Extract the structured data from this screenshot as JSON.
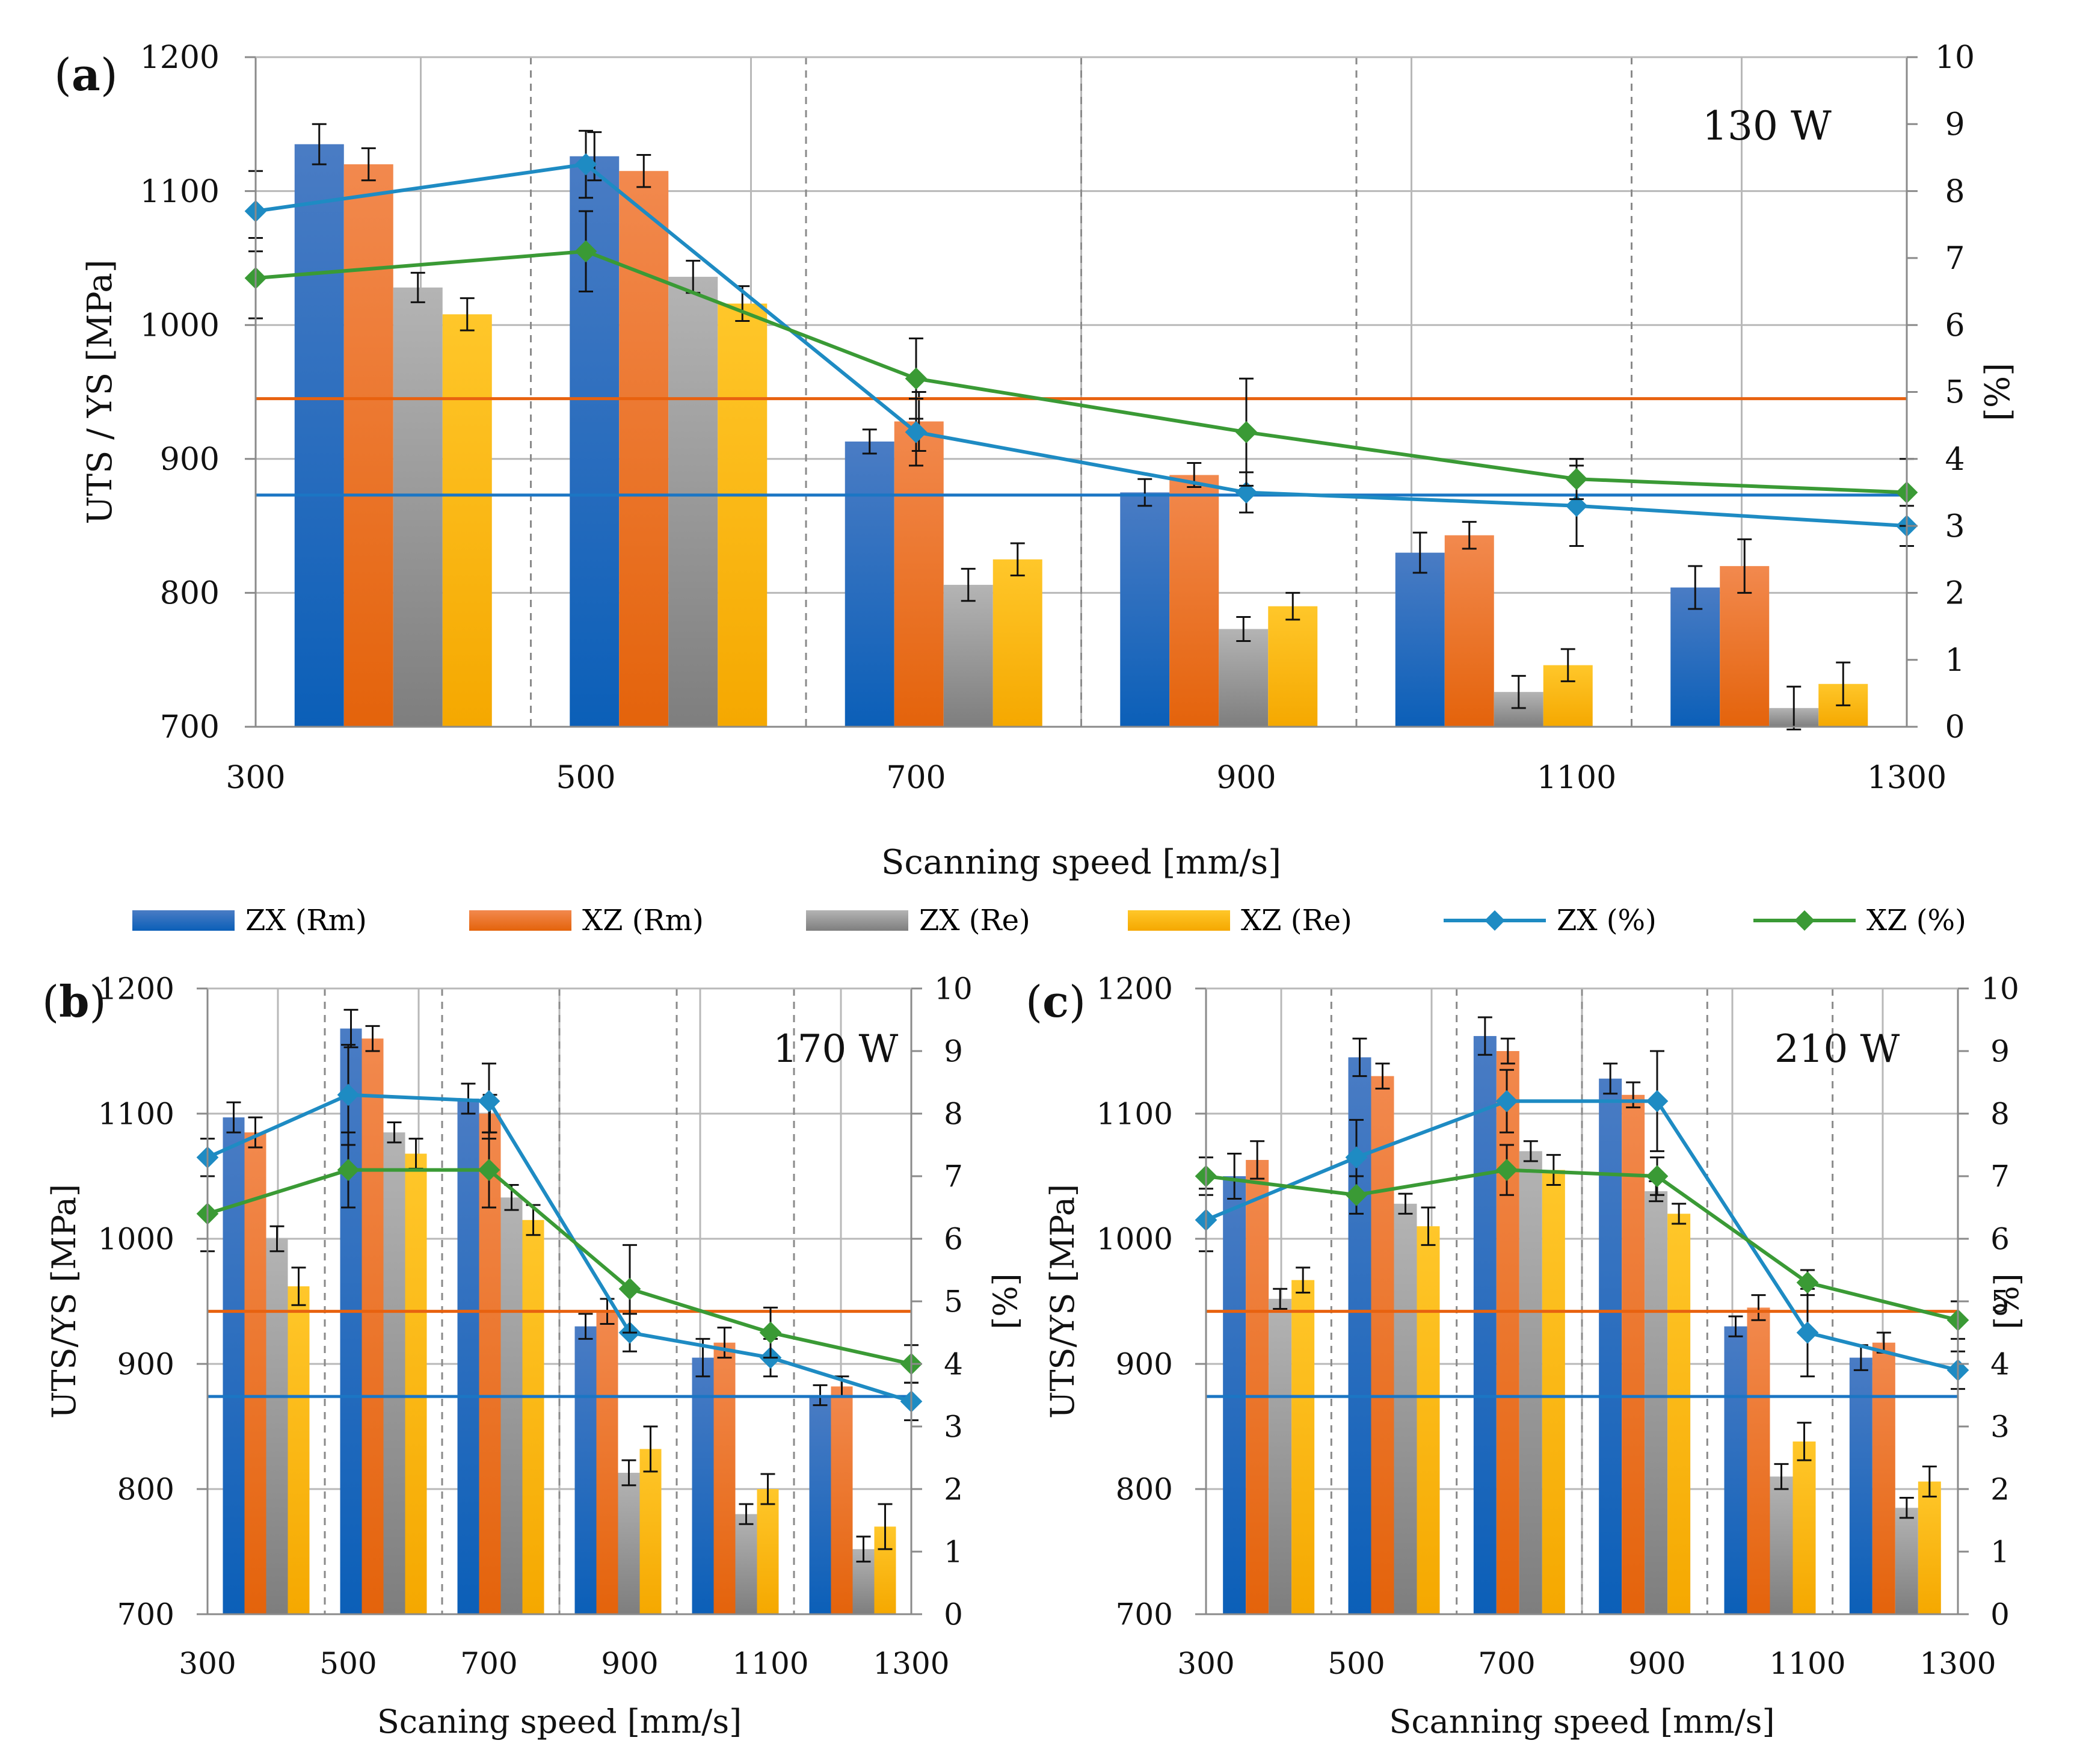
{
  "colors": {
    "zx_rm_top": "#4a7cc4",
    "zx_rm_bottom": "#0b5fb8",
    "xz_rm_top": "#f2894e",
    "xz_rm_bottom": "#e4630b",
    "zx_re_top": "#b4b4b4",
    "zx_re_bottom": "#7e7e7e",
    "xz_re_top": "#ffc72a",
    "xz_re_bottom": "#f5a800",
    "zx_line": "#1e8bc3",
    "xz_line": "#3a9a35",
    "ref_orange": "#e8620f",
    "ref_blue": "#1b76c4"
  },
  "legend": [
    {
      "key": "zx_rm",
      "label": "ZX (Rm)",
      "kind": "bar"
    },
    {
      "key": "xz_rm",
      "label": "XZ (Rm)",
      "kind": "bar"
    },
    {
      "key": "zx_re",
      "label": "ZX (Re)",
      "kind": "bar"
    },
    {
      "key": "xz_re",
      "label": "XZ (Re)",
      "kind": "bar"
    },
    {
      "key": "zx_pct",
      "label": "ZX (%)",
      "kind": "line"
    },
    {
      "key": "xz_pct",
      "label": "XZ (%)",
      "kind": "line"
    }
  ],
  "chart_data": [
    {
      "panel": "a",
      "panel_label_letter": "a",
      "type": "bar",
      "power_label": "130 W",
      "xlabel": "Scanning speed [mm/s]",
      "ylabel_left": "UTS / YS [MPa]",
      "ylabel_right": "[%]",
      "categories": [
        "300",
        "500",
        "700",
        "900",
        "1100",
        "1300"
      ],
      "groups_speed": [
        350,
        550,
        750,
        950,
        1150,
        1350
      ],
      "xlim": [
        300,
        1300
      ],
      "ylim_left": [
        700,
        1200
      ],
      "yticks_left": [
        700,
        800,
        900,
        1000,
        1100,
        1200
      ],
      "ylim_right": [
        0,
        10
      ],
      "yticks_right": [
        0,
        1,
        2,
        3,
        4,
        5,
        6,
        7,
        8,
        9,
        10
      ],
      "bar_series": [
        {
          "key": "zx_rm",
          "name": "ZX (Rm)",
          "values": [
            1135,
            1126,
            913,
            875,
            830,
            804
          ],
          "err": [
            15,
            18,
            9,
            10,
            15,
            16
          ]
        },
        {
          "key": "xz_rm",
          "name": "XZ (Rm)",
          "values": [
            1120,
            1115,
            928,
            888,
            843,
            820
          ],
          "err": [
            12,
            12,
            22,
            9,
            10,
            20
          ]
        },
        {
          "key": "zx_re",
          "name": "ZX (Re)",
          "values": [
            1028,
            1036,
            806,
            773,
            726,
            714
          ],
          "err": [
            11,
            12,
            12,
            9,
            12,
            16
          ]
        },
        {
          "key": "xz_re",
          "name": "XZ (Re)",
          "values": [
            1008,
            1016,
            825,
            790,
            746,
            732
          ],
          "err": [
            12,
            13,
            12,
            10,
            12,
            16
          ]
        }
      ],
      "line_series": [
        {
          "key": "zx_pct",
          "name": "ZX (%)",
          "x": [
            300,
            500,
            700,
            900,
            1100,
            1300
          ],
          "values": [
            7.7,
            8.4,
            4.4,
            3.5,
            3.3,
            3.0
          ],
          "err": [
            0.6,
            0.5,
            0.5,
            0.3,
            0.6,
            0.3
          ]
        },
        {
          "key": "xz_pct",
          "name": "XZ (%)",
          "x": [
            300,
            500,
            700,
            900,
            1100,
            1300
          ],
          "values": [
            6.7,
            7.1,
            5.2,
            4.4,
            3.7,
            3.5
          ],
          "err": [
            0.6,
            0.6,
            0.6,
            0.8,
            0.3,
            0.5
          ]
        }
      ],
      "ref_lines": [
        {
          "key": "ref_orange",
          "value": 945
        },
        {
          "key": "ref_blue",
          "value": 873
        }
      ]
    },
    {
      "panel": "b",
      "panel_label_letter": "b",
      "type": "bar",
      "power_label": "170 W",
      "xlabel": "Scaning speed [mm/s]",
      "ylabel_left": "UTS/YS [MPa]",
      "ylabel_right": "[%]",
      "categories": [
        "300",
        "500",
        "700",
        "900",
        "1100",
        "1300"
      ],
      "groups_speed": [
        350,
        550,
        750,
        950,
        1150,
        1350
      ],
      "xlim": [
        300,
        1300
      ],
      "ylim_left": [
        700,
        1200
      ],
      "yticks_left": [
        700,
        800,
        900,
        1000,
        1100,
        1200
      ],
      "ylim_right": [
        0,
        10
      ],
      "yticks_right": [
        0,
        1,
        2,
        3,
        4,
        5,
        6,
        7,
        8,
        9,
        10
      ],
      "bar_series": [
        {
          "key": "zx_rm",
          "name": "ZX (Rm)",
          "values": [
            1097,
            1168,
            1112,
            930,
            905,
            875
          ],
          "err": [
            12,
            15,
            12,
            10,
            15,
            8
          ]
        },
        {
          "key": "xz_rm",
          "name": "XZ (Rm)",
          "values": [
            1085,
            1160,
            1100,
            942,
            917,
            882
          ],
          "err": [
            12,
            10,
            15,
            10,
            12,
            8
          ]
        },
        {
          "key": "zx_re",
          "name": "ZX (Re)",
          "values": [
            1000,
            1085,
            1033,
            813,
            780,
            752
          ],
          "err": [
            10,
            8,
            10,
            10,
            8,
            10
          ]
        },
        {
          "key": "xz_re",
          "name": "XZ (Re)",
          "values": [
            962,
            1068,
            1015,
            832,
            800,
            770
          ],
          "err": [
            15,
            12,
            12,
            18,
            12,
            18
          ]
        }
      ],
      "line_series": [
        {
          "key": "zx_pct",
          "name": "ZX (%)",
          "x": [
            300,
            500,
            700,
            900,
            1100,
            1300
          ],
          "values": [
            7.3,
            8.3,
            8.2,
            4.5,
            4.1,
            3.4
          ],
          "err": [
            0.3,
            0.8,
            0.6,
            0.3,
            0.3,
            0.3
          ]
        },
        {
          "key": "xz_pct",
          "name": "XZ (%)",
          "x": [
            300,
            500,
            700,
            900,
            1100,
            1300
          ],
          "values": [
            6.4,
            7.1,
            7.1,
            5.2,
            4.5,
            4.0
          ],
          "err": [
            0.6,
            0.6,
            0.6,
            0.7,
            0.4,
            0.3
          ]
        }
      ],
      "ref_lines": [
        {
          "key": "ref_orange",
          "value": 942
        },
        {
          "key": "ref_blue",
          "value": 874
        }
      ]
    },
    {
      "panel": "c",
      "panel_label_letter": "c",
      "type": "bar",
      "power_label": "210 W",
      "xlabel": "Scanning speed [mm/s]",
      "ylabel_left": "UTS/YS [MPa]",
      "ylabel_right": "[%]",
      "categories": [
        "300",
        "500",
        "700",
        "900",
        "1100",
        "1300"
      ],
      "groups_speed": [
        350,
        550,
        750,
        950,
        1150,
        1350
      ],
      "xlim": [
        300,
        1300
      ],
      "ylim_left": [
        700,
        1200
      ],
      "yticks_left": [
        700,
        800,
        900,
        1000,
        1100,
        1200
      ],
      "ylim_right": [
        0,
        10
      ],
      "yticks_right": [
        0,
        1,
        2,
        3,
        4,
        5,
        6,
        7,
        8,
        9,
        10
      ],
      "bar_series": [
        {
          "key": "zx_rm",
          "name": "ZX (Rm)",
          "values": [
            1050,
            1145,
            1162,
            1128,
            930,
            905
          ],
          "err": [
            18,
            15,
            15,
            12,
            8,
            10
          ]
        },
        {
          "key": "xz_rm",
          "name": "XZ (Rm)",
          "values": [
            1063,
            1130,
            1150,
            1115,
            945,
            917
          ],
          "err": [
            15,
            10,
            10,
            10,
            10,
            8
          ]
        },
        {
          "key": "zx_re",
          "name": "ZX (Re)",
          "values": [
            952,
            1028,
            1070,
            1038,
            810,
            785
          ],
          "err": [
            8,
            8,
            8,
            8,
            10,
            8
          ]
        },
        {
          "key": "xz_re",
          "name": "XZ (Re)",
          "values": [
            967,
            1010,
            1055,
            1020,
            838,
            806
          ],
          "err": [
            10,
            15,
            12,
            8,
            15,
            12
          ]
        }
      ],
      "line_series": [
        {
          "key": "zx_pct",
          "name": "ZX (%)",
          "x": [
            300,
            500,
            700,
            900,
            1100,
            1300
          ],
          "values": [
            6.3,
            7.3,
            8.2,
            8.2,
            4.5,
            3.9
          ],
          "err": [
            0.5,
            0.6,
            0.5,
            0.8,
            0.7,
            0.3
          ]
        },
        {
          "key": "xz_pct",
          "name": "XZ (%)",
          "x": [
            300,
            500,
            700,
            900,
            1100,
            1300
          ],
          "values": [
            7.0,
            6.7,
            7.1,
            7.0,
            5.3,
            4.7
          ],
          "err": [
            0.3,
            0.3,
            0.4,
            0.3,
            0.2,
            0.3
          ]
        }
      ],
      "ref_lines": [
        {
          "key": "ref_orange",
          "value": 942
        },
        {
          "key": "ref_blue",
          "value": 874
        }
      ]
    }
  ]
}
